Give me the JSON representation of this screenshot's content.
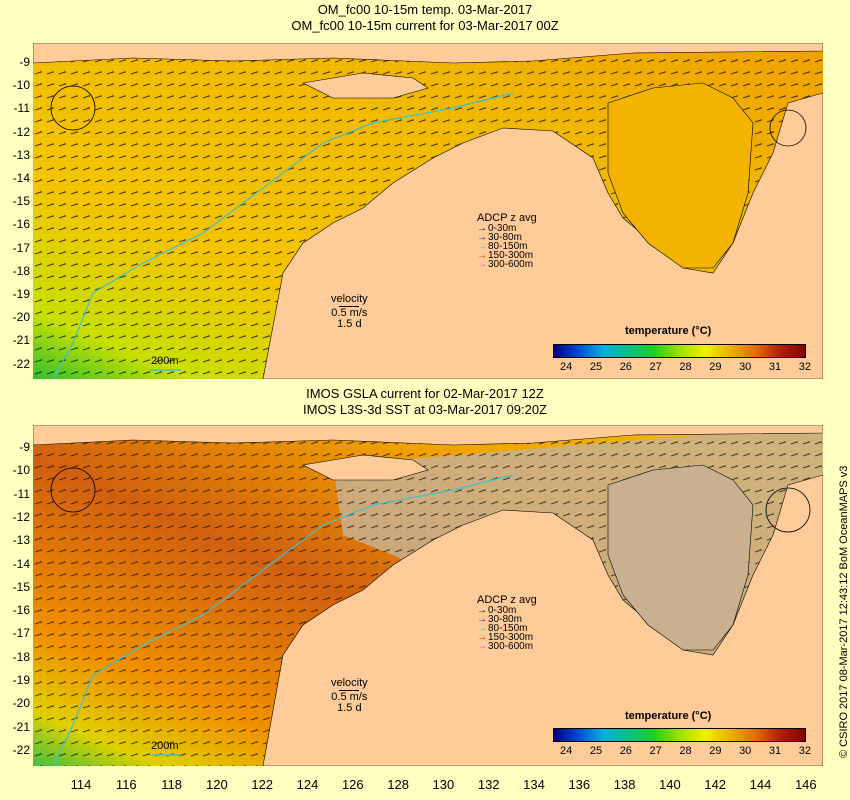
{
  "top": {
    "title_line1": "OM_fc00 10-15m temp. 03-Mar-2017",
    "title_line2": "OM_fc00 10-15m current for 03-Mar-2017 00Z",
    "velocity": {
      "label": "velocity",
      "speed": "0.5 m/s",
      "duration": "1.5 d"
    },
    "depth_label": "200m"
  },
  "bottom": {
    "title_line1": "IMOS GSLA current for 02-Mar-2017 12Z",
    "title_line2": "IMOS L3S-3d SST at 03-Mar-2017 09:20Z",
    "velocity": {
      "label": "velocity",
      "speed": "0.5 m/s",
      "duration": "1.5 d"
    },
    "depth_label": "200m"
  },
  "adcp_legend": {
    "title": "ADCP z avg",
    "items": [
      {
        "label": "0-30m",
        "color": "#000000"
      },
      {
        "label": "30-80m",
        "color": "#0000ff"
      },
      {
        "label": "80-150m",
        "color": "#00e0e0"
      },
      {
        "label": "150-300m",
        "color": "#ff2000"
      },
      {
        "label": "300-600m",
        "color": "#ff40ff"
      }
    ]
  },
  "colorbar": {
    "title": "temperature (°C)",
    "ticks": [
      "24",
      "25",
      "26",
      "27",
      "28",
      "29",
      "30",
      "31",
      "32"
    ],
    "colors": [
      "#000080",
      "#0050d0",
      "#00b0e0",
      "#00c080",
      "#20d020",
      "#a0e000",
      "#f0f000",
      "#f0b000",
      "#e07000",
      "#b02000",
      "#800000"
    ]
  },
  "y_axis_labels": [
    "-9",
    "-10",
    "-11",
    "-12",
    "-13",
    "-14",
    "-15",
    "-16",
    "-17",
    "-18",
    "-19",
    "-20",
    "-21",
    "-22"
  ],
  "x_axis_labels": [
    "114",
    "116",
    "118",
    "120",
    "122",
    "124",
    "126",
    "128",
    "130",
    "132",
    "134",
    "136",
    "138",
    "140",
    "142",
    "144",
    "146"
  ],
  "credit": "© CSIRO 2017  08-Mar-2017 12:43:12 BoM OceanMAPS v3",
  "colors": {
    "background": "#ffffc0",
    "land": "#ffcc99",
    "coast_line": "#000000",
    "isobath_200m": "#40c0d0"
  }
}
